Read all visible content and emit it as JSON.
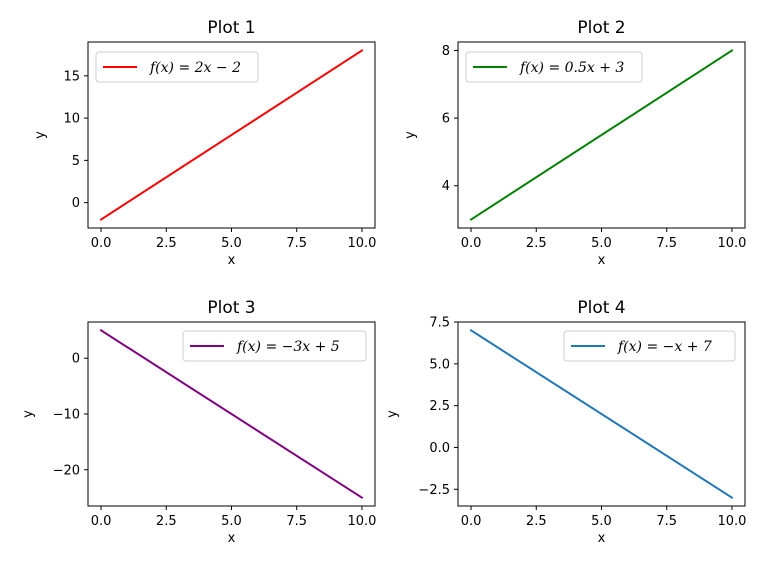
{
  "chart_data": [
    {
      "type": "line",
      "title": "Plot 1",
      "xlabel": "x",
      "ylabel": "y",
      "xlim": [
        -0.5,
        10.5
      ],
      "ylim": [
        -3,
        19
      ],
      "xticks": [
        0,
        2.5,
        5,
        7.5,
        10
      ],
      "xtick_labels": [
        "0.0",
        "2.5",
        "5.0",
        "7.5",
        "10.0"
      ],
      "yticks": [
        0,
        5,
        10,
        15
      ],
      "ytick_labels": [
        "0",
        "5",
        "10",
        "15"
      ],
      "legend_position": "top-left",
      "series": [
        {
          "name": "f(x) = 2x − 2",
          "color": "#ff0000",
          "x": [
            0,
            10
          ],
          "y": [
            -2,
            18
          ]
        }
      ]
    },
    {
      "type": "line",
      "title": "Plot 2",
      "xlabel": "x",
      "ylabel": "y",
      "xlim": [
        -0.5,
        10.5
      ],
      "ylim": [
        2.75,
        8.25
      ],
      "xticks": [
        0,
        2.5,
        5,
        7.5,
        10
      ],
      "xtick_labels": [
        "0.0",
        "2.5",
        "5.0",
        "7.5",
        "10.0"
      ],
      "yticks": [
        4,
        6,
        8
      ],
      "ytick_labels": [
        "4",
        "6",
        "8"
      ],
      "legend_position": "top-left",
      "series": [
        {
          "name": "f(x) = 0.5x + 3",
          "color": "#008000",
          "x": [
            0,
            10
          ],
          "y": [
            3,
            8
          ]
        }
      ]
    },
    {
      "type": "line",
      "title": "Plot 3",
      "xlabel": "x",
      "ylabel": "y",
      "xlim": [
        -0.5,
        10.5
      ],
      "ylim": [
        -26.5,
        6.5
      ],
      "xticks": [
        0,
        2.5,
        5,
        7.5,
        10
      ],
      "xtick_labels": [
        "0.0",
        "2.5",
        "5.0",
        "7.5",
        "10.0"
      ],
      "yticks": [
        0,
        -10,
        -20
      ],
      "ytick_labels": [
        "0",
        "−10",
        "−20"
      ],
      "legend_position": "top-right",
      "series": [
        {
          "name": "f(x) = −3x + 5",
          "color": "#800080",
          "x": [
            0,
            10
          ],
          "y": [
            5,
            -25
          ]
        }
      ]
    },
    {
      "type": "line",
      "title": "Plot 4",
      "xlabel": "x",
      "ylabel": "y",
      "xlim": [
        -0.5,
        10.5
      ],
      "ylim": [
        -3.5,
        7.5
      ],
      "xticks": [
        0,
        2.5,
        5,
        7.5,
        10
      ],
      "xtick_labels": [
        "0.0",
        "2.5",
        "5.0",
        "7.5",
        "10.0"
      ],
      "yticks": [
        7.5,
        5,
        2.5,
        0,
        -2.5
      ],
      "ytick_labels": [
        "7.5",
        "5.0",
        "2.5",
        "0.0",
        "−2.5"
      ],
      "legend_position": "top-right",
      "series": [
        {
          "name": "f(x) = −x + 7",
          "color": "#1f77b4",
          "x": [
            0,
            10
          ],
          "y": [
            7,
            -3
          ]
        }
      ]
    }
  ]
}
